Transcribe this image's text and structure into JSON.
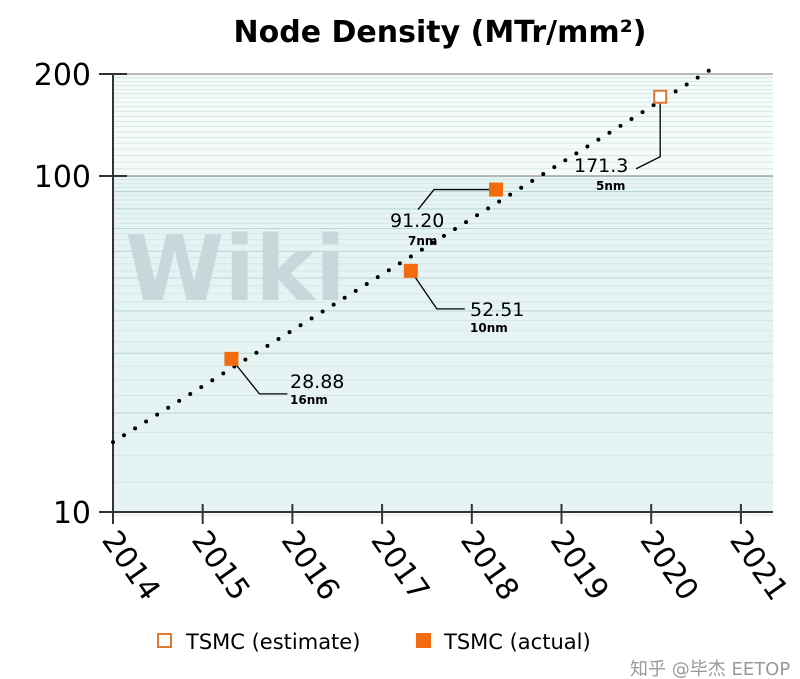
{
  "chart_data": {
    "type": "scatter",
    "title": "Node Density (MTr/mm²)",
    "xlabel": "",
    "ylabel": "",
    "yscale": "log",
    "ylim": [
      10,
      200
    ],
    "xlim": [
      2014,
      2021.35
    ],
    "yticks": [
      {
        "value": 10,
        "label": "10"
      },
      {
        "value": 100,
        "label": "100"
      },
      {
        "value": 200,
        "label": "200"
      }
    ],
    "xticks": [
      "2014",
      "2015",
      "2016",
      "2017",
      "2018",
      "2019",
      "2020",
      "2021"
    ],
    "grid": true,
    "legend_position": "bottom",
    "series": [
      {
        "name": "TSMC (actual)",
        "marker": "filled-square",
        "color": "#f26b0f",
        "points": [
          {
            "x": 2015.32,
            "y": 28.88,
            "label": "28.88",
            "node": "16nm"
          },
          {
            "x": 2017.32,
            "y": 52.51,
            "label": "52.51",
            "node": "10nm"
          },
          {
            "x": 2018.27,
            "y": 91.2,
            "label": "91.20",
            "node": "7nm"
          }
        ]
      },
      {
        "name": "TSMC (estimate)",
        "marker": "open-square",
        "color": "#e07a30",
        "points": [
          {
            "x": 2020.1,
            "y": 171.3,
            "label": "171.3",
            "node": "5nm"
          }
        ]
      }
    ],
    "trendline": {
      "style": "dotted",
      "color": "#000000",
      "from": {
        "x": 2014,
        "y": 16.4
      },
      "to": {
        "x": 2020.65,
        "y": 205
      }
    }
  },
  "legend": {
    "estimate": "TSMC (estimate)",
    "actual": "TSMC (actual)"
  },
  "watermark": {
    "text": "知乎 @毕杰 EETOP",
    "logo_text": "Wiki"
  }
}
